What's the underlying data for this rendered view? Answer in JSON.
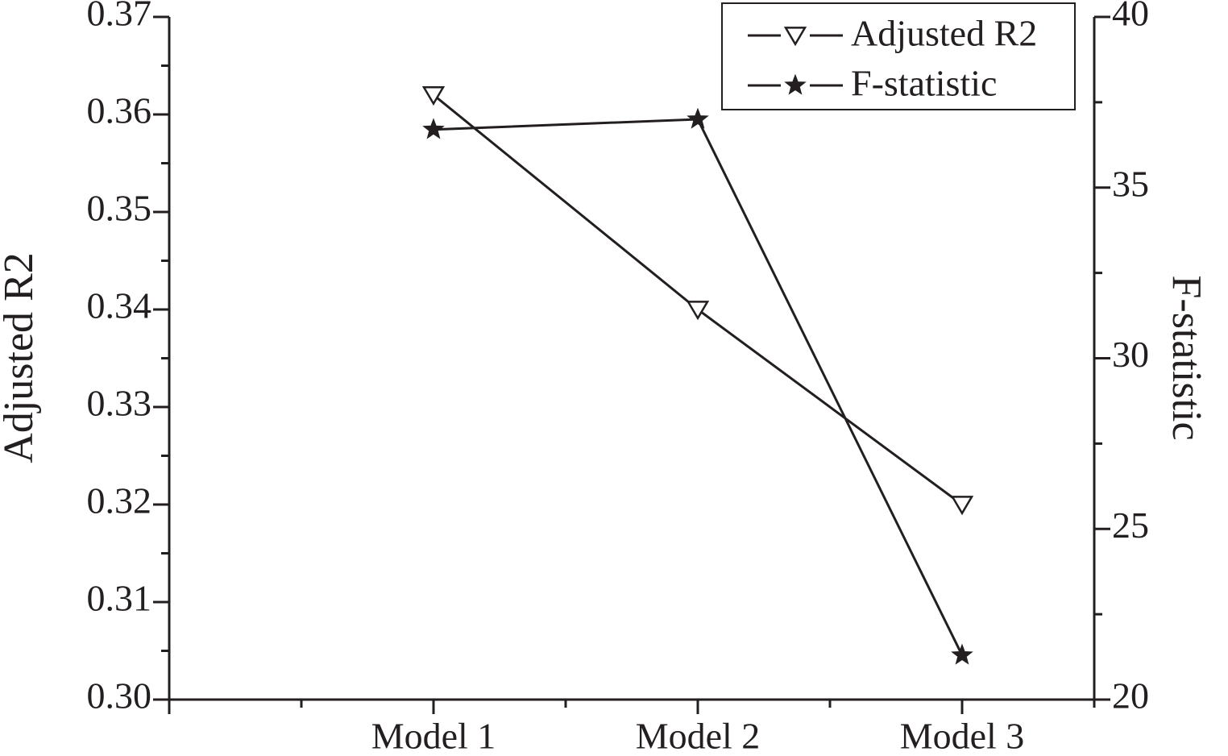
{
  "chart_data": {
    "type": "line",
    "categories": [
      "Model 1",
      "Model 2",
      "Model 3"
    ],
    "series": [
      {
        "name": "Adjusted R2",
        "color": "#231f20",
        "marker": "triangle-down",
        "values": [
          0.362,
          0.34,
          0.32
        ]
      },
      {
        "name": "F-statistic",
        "color": "#231f20",
        "marker": "star",
        "axis": "y2",
        "values": [
          36.7,
          37.0,
          21.3
        ]
      }
    ],
    "ylabel": "Adjusted R2",
    "y2label": "F-statistic",
    "ylim": [
      0.3,
      0.37
    ],
    "yticks": [
      {
        "value": 0.3,
        "label": "0.30"
      },
      0.31,
      0.32,
      0.33,
      0.34,
      0.35,
      0.36,
      0.37
    ],
    "y2lim": [
      20,
      40
    ],
    "y2ticks": [
      20,
      25,
      30,
      35,
      40
    ],
    "legend": "upper right"
  }
}
